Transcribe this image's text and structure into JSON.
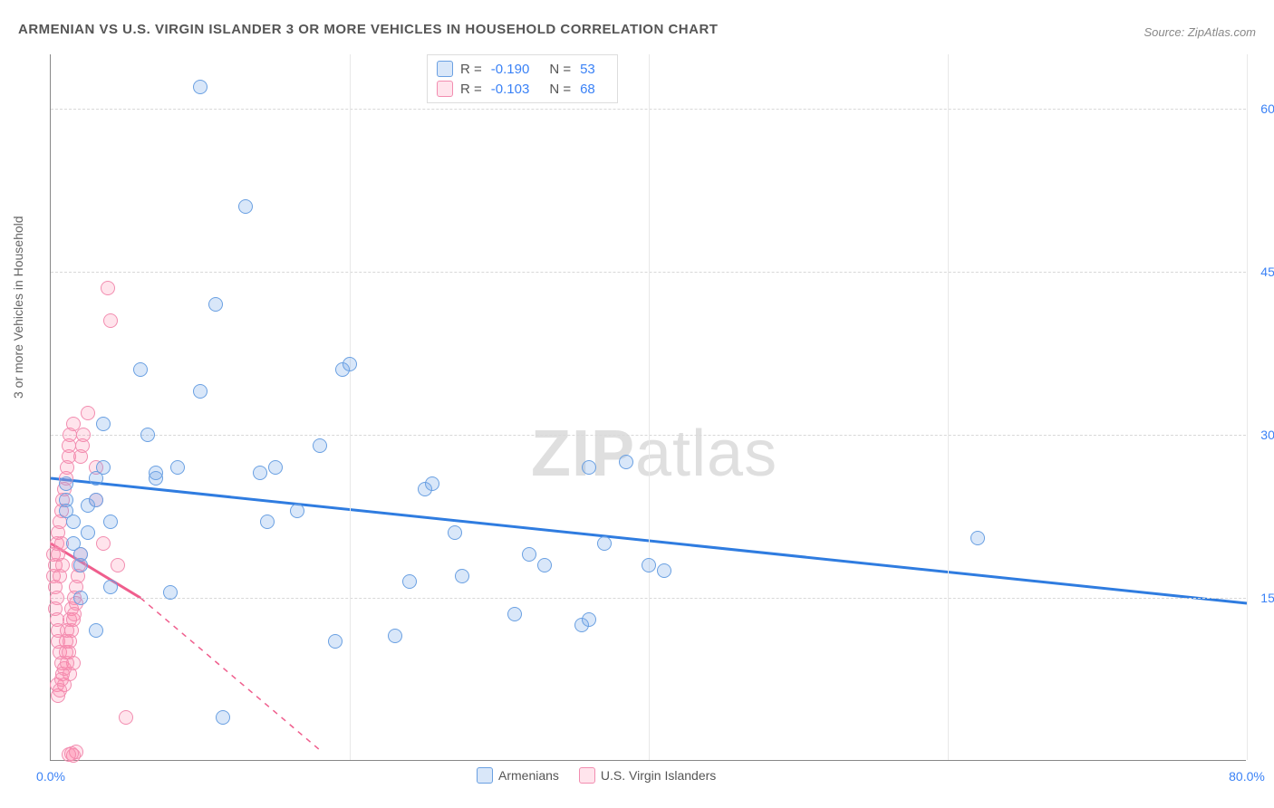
{
  "title": "ARMENIAN VS U.S. VIRGIN ISLANDER 3 OR MORE VEHICLES IN HOUSEHOLD CORRELATION CHART",
  "source": "Source: ZipAtlas.com",
  "ylabel": "3 or more Vehicles in Household",
  "watermark_a": "ZIP",
  "watermark_b": "atlas",
  "xlim": [
    0,
    80
  ],
  "ylim": [
    0,
    65
  ],
  "xticks": [
    0,
    20,
    40,
    60,
    80
  ],
  "xtick_labels": [
    "0.0%",
    "",
    "",
    "",
    "80.0%"
  ],
  "yticks": [
    15,
    30,
    45,
    60
  ],
  "ytick_labels": [
    "15.0%",
    "30.0%",
    "45.0%",
    "60.0%"
  ],
  "colors": {
    "blue_fill": "rgba(120,170,235,0.28)",
    "blue_stroke": "#6aa0e2",
    "pink_fill": "rgba(255,130,170,0.22)",
    "pink_stroke": "#f28db0",
    "blue_line": "#2f7ce0",
    "pink_line": "#ef5e8d",
    "grid": "#d8d8d8"
  },
  "series": {
    "armenians": {
      "label": "Armenians",
      "R": "-0.190",
      "N": "53",
      "trend": {
        "x1": 0,
        "y1": 26,
        "x2": 80,
        "y2": 14.5,
        "dash": false
      },
      "points": [
        [
          1,
          24
        ],
        [
          1,
          25.5
        ],
        [
          1,
          23
        ],
        [
          1.5,
          22
        ],
        [
          1.5,
          20
        ],
        [
          2,
          18
        ],
        [
          2,
          19
        ],
        [
          2.5,
          21
        ],
        [
          2.5,
          23.5
        ],
        [
          3,
          24
        ],
        [
          3,
          26
        ],
        [
          3.5,
          27
        ],
        [
          3.5,
          31
        ],
        [
          4,
          22
        ],
        [
          6,
          36
        ],
        [
          6.5,
          30
        ],
        [
          7,
          26
        ],
        [
          7,
          26.5
        ],
        [
          8,
          15.5
        ],
        [
          8.5,
          27
        ],
        [
          10,
          34
        ],
        [
          10,
          62
        ],
        [
          11,
          42
        ],
        [
          11.5,
          4
        ],
        [
          13,
          51
        ],
        [
          14,
          26.5
        ],
        [
          14.5,
          22
        ],
        [
          15,
          27
        ],
        [
          16.5,
          23
        ],
        [
          18,
          29
        ],
        [
          19,
          11
        ],
        [
          19.5,
          36
        ],
        [
          20,
          36.5
        ],
        [
          23,
          11.5
        ],
        [
          24,
          16.5
        ],
        [
          25,
          25
        ],
        [
          25.5,
          25.5
        ],
        [
          27,
          21
        ],
        [
          27.5,
          17
        ],
        [
          31,
          13.5
        ],
        [
          32,
          19
        ],
        [
          33,
          18
        ],
        [
          35.5,
          12.5
        ],
        [
          36,
          27
        ],
        [
          36,
          13
        ],
        [
          37,
          20
        ],
        [
          38.5,
          27.5
        ],
        [
          40,
          18
        ],
        [
          41,
          17.5
        ],
        [
          62,
          20.5
        ],
        [
          2,
          15
        ],
        [
          3,
          12
        ],
        [
          4,
          16
        ]
      ]
    },
    "usvi": {
      "label": "U.S. Virgin Islanders",
      "R": "-0.103",
      "N": "68",
      "trend_solid": {
        "x1": 0,
        "y1": 20,
        "x2": 6,
        "y2": 15,
        "dash": false
      },
      "trend_dash": {
        "x1": 6,
        "y1": 15,
        "x2": 18,
        "y2": 1,
        "dash": true
      },
      "points": [
        [
          0.2,
          19
        ],
        [
          0.2,
          17
        ],
        [
          0.3,
          16
        ],
        [
          0.3,
          18
        ],
        [
          0.3,
          14
        ],
        [
          0.4,
          20
        ],
        [
          0.4,
          15
        ],
        [
          0.4,
          13
        ],
        [
          0.5,
          21
        ],
        [
          0.5,
          19
        ],
        [
          0.5,
          11
        ],
        [
          0.5,
          12
        ],
        [
          0.6,
          22
        ],
        [
          0.6,
          17
        ],
        [
          0.6,
          10
        ],
        [
          0.7,
          23
        ],
        [
          0.7,
          20
        ],
        [
          0.7,
          9
        ],
        [
          0.8,
          8
        ],
        [
          0.8,
          18
        ],
        [
          0.8,
          24
        ],
        [
          0.9,
          25
        ],
        [
          0.9,
          7
        ],
        [
          1.0,
          26
        ],
        [
          1.0,
          10
        ],
        [
          1.0,
          11
        ],
        [
          1.1,
          27
        ],
        [
          1.1,
          12
        ],
        [
          1.2,
          28
        ],
        [
          1.2,
          29
        ],
        [
          1.3,
          30
        ],
        [
          1.3,
          13
        ],
        [
          1.3,
          8
        ],
        [
          1.4,
          14
        ],
        [
          1.5,
          31
        ],
        [
          1.5,
          9
        ],
        [
          1.5,
          0.5
        ],
        [
          1.6,
          15
        ],
        [
          1.7,
          16
        ],
        [
          1.7,
          0.8
        ],
        [
          1.8,
          17
        ],
        [
          1.9,
          18
        ],
        [
          2.0,
          19
        ],
        [
          2.0,
          28
        ],
        [
          2.1,
          29
        ],
        [
          2.2,
          30
        ],
        [
          2.5,
          32
        ],
        [
          3,
          27
        ],
        [
          3,
          24
        ],
        [
          3.5,
          20
        ],
        [
          3.8,
          43.5
        ],
        [
          4,
          40.5
        ],
        [
          4.5,
          18
        ],
        [
          5,
          4
        ],
        [
          0.4,
          7
        ],
        [
          0.5,
          6
        ],
        [
          0.6,
          6.5
        ],
        [
          0.7,
          7.5
        ],
        [
          0.9,
          8.5
        ],
        [
          1.1,
          9
        ],
        [
          1.2,
          10
        ],
        [
          1.3,
          11
        ],
        [
          1.4,
          12
        ],
        [
          1.5,
          13
        ],
        [
          1.6,
          13.5
        ],
        [
          1.7,
          14.5
        ],
        [
          1.2,
          0.6
        ],
        [
          1.4,
          0.7
        ]
      ]
    }
  },
  "legend_bottom": [
    "Armenians",
    "U.S. Virgin Islanders"
  ]
}
